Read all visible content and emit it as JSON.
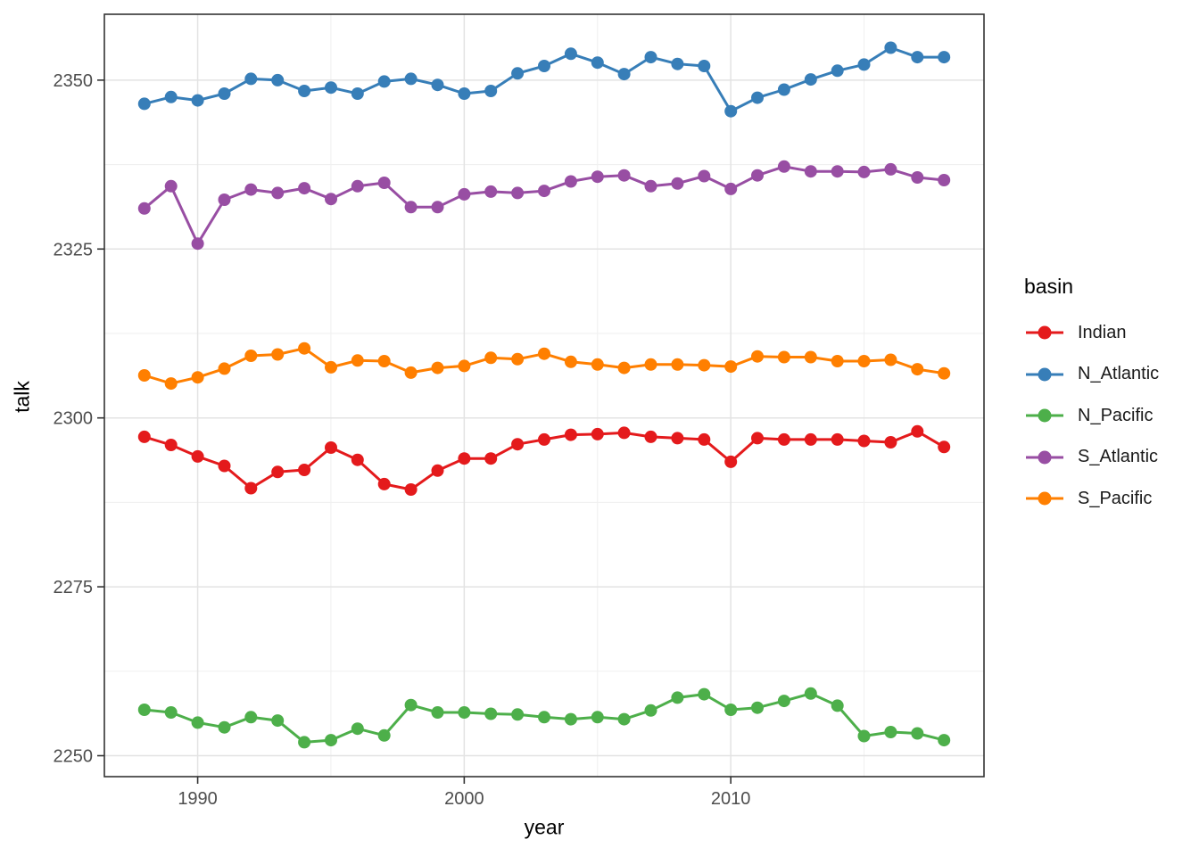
{
  "chart_data": {
    "type": "line",
    "title": "",
    "xlabel": "year",
    "ylabel": "talk",
    "legend_title": "basin",
    "legend_position": "right",
    "grid": true,
    "marker": "point",
    "xlim": [
      1986.5,
      2019.5
    ],
    "ylim": [
      2246.9,
      2359.75
    ],
    "x_ticks": [
      1990,
      2000,
      2010
    ],
    "x_minor_ticks": [
      1995,
      2005,
      2015
    ],
    "y_ticks": [
      2250,
      2275,
      2300,
      2325,
      2350
    ],
    "y_minor_ticks": [
      2262.5,
      2287.5,
      2312.5,
      2337.5
    ],
    "x": [
      1988,
      1989,
      1990,
      1991,
      1992,
      1993,
      1994,
      1995,
      1996,
      1997,
      1998,
      1999,
      2000,
      2001,
      2002,
      2003,
      2004,
      2005,
      2006,
      2007,
      2008,
      2009,
      2010,
      2011,
      2012,
      2013,
      2014,
      2015,
      2016,
      2017,
      2018
    ],
    "series": [
      {
        "name": "Indian",
        "color": "#E41A1C",
        "values": [
          2297.2,
          2296.0,
          2294.3,
          2292.9,
          2289.6,
          2292.0,
          2292.3,
          2295.6,
          2293.8,
          2290.2,
          2289.4,
          2292.2,
          2294.0,
          2294.0,
          2296.1,
          2296.8,
          2297.5,
          2297.6,
          2297.8,
          2297.2,
          2297.0,
          2296.8,
          2293.5,
          2297.0,
          2296.8,
          2296.8,
          2296.8,
          2296.6,
          2296.4,
          2298.0,
          2295.7
        ]
      },
      {
        "name": "N_Atlantic",
        "color": "#377EB8",
        "values": [
          2346.5,
          2347.5,
          2347.0,
          2348.0,
          2350.2,
          2350.0,
          2348.4,
          2348.9,
          2348.0,
          2349.8,
          2350.2,
          2349.3,
          2348.0,
          2348.4,
          2351.0,
          2352.1,
          2353.9,
          2352.6,
          2350.9,
          2353.4,
          2352.4,
          2352.1,
          2345.4,
          2347.4,
          2348.6,
          2350.1,
          2351.4,
          2352.3,
          2354.8,
          2353.4,
          2353.4
        ]
      },
      {
        "name": "N_Pacific",
        "color": "#4DAF4A",
        "values": [
          2256.8,
          2256.4,
          2254.9,
          2254.2,
          2255.7,
          2255.2,
          2252.0,
          2252.3,
          2254.0,
          2253.0,
          2257.5,
          2256.4,
          2256.4,
          2256.2,
          2256.1,
          2255.7,
          2255.4,
          2255.7,
          2255.4,
          2256.7,
          2258.6,
          2259.1,
          2256.8,
          2257.1,
          2258.1,
          2259.2,
          2257.4,
          2252.9,
          2253.5,
          2253.3,
          2252.3
        ]
      },
      {
        "name": "S_Atlantic",
        "color": "#984EA3",
        "values": [
          2331.0,
          2334.3,
          2325.8,
          2332.3,
          2333.8,
          2333.3,
          2334.0,
          2332.4,
          2334.3,
          2334.8,
          2331.2,
          2331.2,
          2333.1,
          2333.5,
          2333.3,
          2333.6,
          2335.0,
          2335.7,
          2335.9,
          2334.3,
          2334.7,
          2335.8,
          2333.9,
          2335.9,
          2337.2,
          2336.5,
          2336.5,
          2336.4,
          2336.8,
          2335.6,
          2335.2
        ]
      },
      {
        "name": "S_Pacific",
        "color": "#FF7F00",
        "values": [
          2306.3,
          2305.1,
          2306.0,
          2307.3,
          2309.2,
          2309.4,
          2310.3,
          2307.5,
          2308.5,
          2308.4,
          2306.7,
          2307.4,
          2307.7,
          2308.9,
          2308.7,
          2309.5,
          2308.3,
          2307.9,
          2307.4,
          2307.9,
          2307.9,
          2307.8,
          2307.6,
          2309.1,
          2309.0,
          2309.0,
          2308.4,
          2308.4,
          2308.6,
          2307.2,
          2306.6
        ]
      }
    ],
    "styles": {
      "axis_text_color": "#4d4d4d",
      "axis_title_color": "#000000",
      "grid_major_color": "#e3e3e3",
      "grid_minor_color": "#f0f0f0",
      "panel_border_color": "#333333",
      "tick_mark_color": "#333333",
      "panel_background": "#ffffff"
    }
  }
}
